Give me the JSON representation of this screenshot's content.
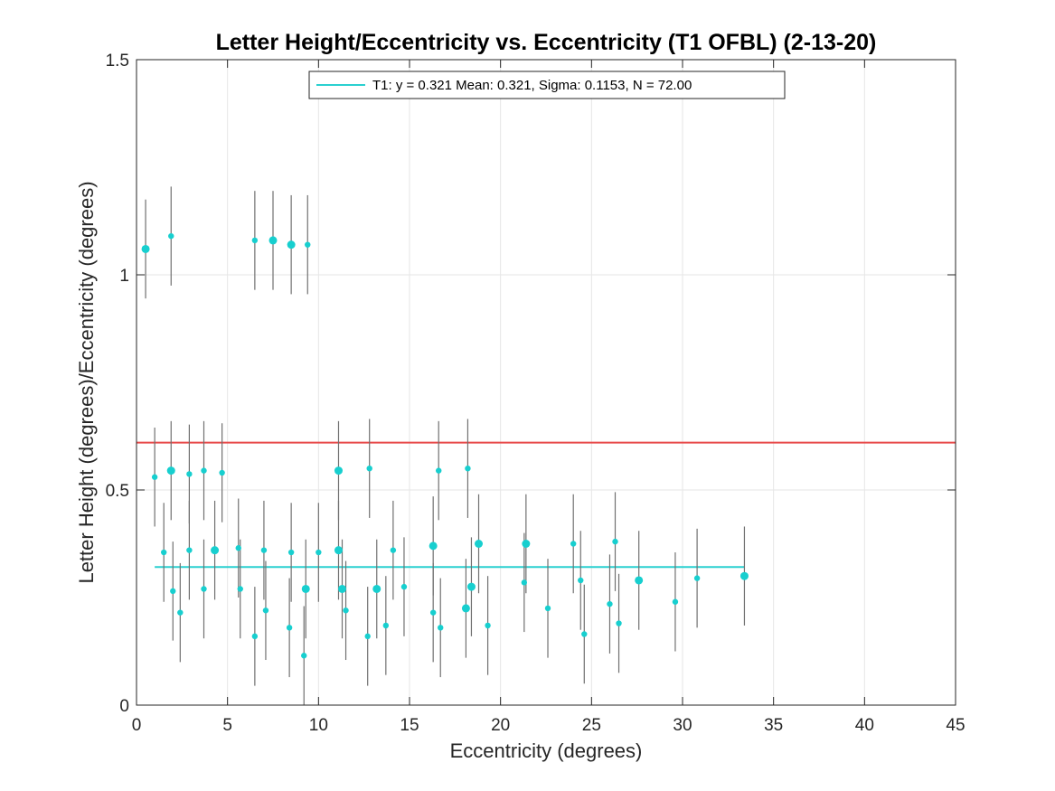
{
  "chart_data": {
    "type": "scatter",
    "title": "Letter Height/Eccentricity vs. Eccentricity (T1 OFBL) (2-13-20)",
    "xlabel": "Eccentricity (degrees)",
    "ylabel": "Letter Height (degrees)/Eccentricity (degrees)",
    "xlim": [
      0,
      45
    ],
    "ylim": [
      0,
      1.5
    ],
    "xticks": [
      0,
      5,
      10,
      15,
      20,
      25,
      30,
      35,
      40,
      45
    ],
    "xtick_labels": [
      "0",
      "5",
      "10",
      "15",
      "20",
      "25",
      "30",
      "35",
      "40",
      "45"
    ],
    "yticks": [
      0,
      0.5,
      1,
      1.5
    ],
    "ytick_labels": [
      "0",
      "0.5",
      "1",
      "1.5"
    ],
    "grid": true,
    "legend": {
      "placement": "top-center",
      "entries": [
        "T1: y = 0.321 Mean: 0.321, Sigma: 0.1153, N = 72.00"
      ]
    },
    "colors": {
      "points": "#17cfcf",
      "fit_line": "#2ad0d0",
      "reference_line": "#e84a4a",
      "error_bars": "#707070",
      "grid": "#e6e6e6"
    },
    "reference_line": {
      "y": 0.61
    },
    "fit_line": {
      "y": 0.321,
      "x_range": [
        1.0,
        33.4
      ]
    },
    "series": [
      {
        "name": "T1",
        "points": [
          {
            "x": 0.5,
            "y": 1.06,
            "err": 0.115,
            "size": "large"
          },
          {
            "x": 1.9,
            "y": 1.09,
            "err": 0.115,
            "size": "small"
          },
          {
            "x": 6.5,
            "y": 1.08,
            "err": 0.115,
            "size": "small"
          },
          {
            "x": 7.5,
            "y": 1.08,
            "err": 0.115,
            "size": "large"
          },
          {
            "x": 8.5,
            "y": 1.07,
            "err": 0.115,
            "size": "large"
          },
          {
            "x": 9.4,
            "y": 1.07,
            "err": 0.115,
            "size": "small"
          },
          {
            "x": 1.0,
            "y": 0.53,
            "err": 0.115,
            "size": "small"
          },
          {
            "x": 1.9,
            "y": 0.545,
            "err": 0.115,
            "size": "large"
          },
          {
            "x": 2.9,
            "y": 0.537,
            "err": 0.115,
            "size": "small"
          },
          {
            "x": 3.7,
            "y": 0.545,
            "err": 0.115,
            "size": "small"
          },
          {
            "x": 4.7,
            "y": 0.54,
            "err": 0.115,
            "size": "small"
          },
          {
            "x": 11.1,
            "y": 0.545,
            "err": 0.115,
            "size": "large"
          },
          {
            "x": 12.8,
            "y": 0.55,
            "err": 0.115,
            "size": "small"
          },
          {
            "x": 16.6,
            "y": 0.545,
            "err": 0.115,
            "size": "small"
          },
          {
            "x": 18.2,
            "y": 0.55,
            "err": 0.115,
            "size": "small"
          },
          {
            "x": 1.5,
            "y": 0.355,
            "err": 0.115,
            "size": "small"
          },
          {
            "x": 2.0,
            "y": 0.265,
            "err": 0.115,
            "size": "small"
          },
          {
            "x": 2.4,
            "y": 0.215,
            "err": 0.115,
            "size": "small"
          },
          {
            "x": 2.9,
            "y": 0.36,
            "err": 0.115,
            "size": "small"
          },
          {
            "x": 3.7,
            "y": 0.27,
            "err": 0.115,
            "size": "small"
          },
          {
            "x": 4.3,
            "y": 0.36,
            "err": 0.115,
            "size": "large"
          },
          {
            "x": 5.6,
            "y": 0.365,
            "err": 0.115,
            "size": "small"
          },
          {
            "x": 5.7,
            "y": 0.27,
            "err": 0.115,
            "size": "small"
          },
          {
            "x": 6.5,
            "y": 0.16,
            "err": 0.115,
            "size": "small"
          },
          {
            "x": 7.0,
            "y": 0.36,
            "err": 0.115,
            "size": "small"
          },
          {
            "x": 7.1,
            "y": 0.22,
            "err": 0.115,
            "size": "small"
          },
          {
            "x": 8.4,
            "y": 0.18,
            "err": 0.115,
            "size": "small"
          },
          {
            "x": 8.5,
            "y": 0.355,
            "err": 0.115,
            "size": "small"
          },
          {
            "x": 9.2,
            "y": 0.115,
            "err": 0.115,
            "size": "small"
          },
          {
            "x": 9.3,
            "y": 0.27,
            "err": 0.115,
            "size": "large"
          },
          {
            "x": 10.0,
            "y": 0.355,
            "err": 0.115,
            "size": "small"
          },
          {
            "x": 11.1,
            "y": 0.36,
            "err": 0.115,
            "size": "large"
          },
          {
            "x": 11.3,
            "y": 0.27,
            "err": 0.115,
            "size": "large"
          },
          {
            "x": 11.5,
            "y": 0.22,
            "err": 0.115,
            "size": "small"
          },
          {
            "x": 12.7,
            "y": 0.16,
            "err": 0.115,
            "size": "small"
          },
          {
            "x": 13.2,
            "y": 0.27,
            "err": 0.115,
            "size": "large"
          },
          {
            "x": 13.7,
            "y": 0.185,
            "err": 0.115,
            "size": "small"
          },
          {
            "x": 14.1,
            "y": 0.36,
            "err": 0.115,
            "size": "small"
          },
          {
            "x": 14.7,
            "y": 0.275,
            "err": 0.115,
            "size": "small"
          },
          {
            "x": 16.3,
            "y": 0.37,
            "err": 0.115,
            "size": "large"
          },
          {
            "x": 16.3,
            "y": 0.215,
            "err": 0.115,
            "size": "small"
          },
          {
            "x": 16.7,
            "y": 0.18,
            "err": 0.115,
            "size": "small"
          },
          {
            "x": 18.1,
            "y": 0.225,
            "err": 0.115,
            "size": "large"
          },
          {
            "x": 18.4,
            "y": 0.275,
            "err": 0.115,
            "size": "large"
          },
          {
            "x": 18.8,
            "y": 0.375,
            "err": 0.115,
            "size": "large"
          },
          {
            "x": 19.3,
            "y": 0.185,
            "err": 0.115,
            "size": "small"
          },
          {
            "x": 21.3,
            "y": 0.285,
            "err": 0.115,
            "size": "small"
          },
          {
            "x": 21.4,
            "y": 0.375,
            "err": 0.115,
            "size": "large"
          },
          {
            "x": 22.6,
            "y": 0.225,
            "err": 0.115,
            "size": "small"
          },
          {
            "x": 24.0,
            "y": 0.375,
            "err": 0.115,
            "size": "small"
          },
          {
            "x": 24.4,
            "y": 0.29,
            "err": 0.115,
            "size": "small"
          },
          {
            "x": 24.6,
            "y": 0.165,
            "err": 0.115,
            "size": "small"
          },
          {
            "x": 26.0,
            "y": 0.235,
            "err": 0.115,
            "size": "small"
          },
          {
            "x": 26.3,
            "y": 0.38,
            "err": 0.115,
            "size": "small"
          },
          {
            "x": 26.5,
            "y": 0.19,
            "err": 0.115,
            "size": "small"
          },
          {
            "x": 27.6,
            "y": 0.29,
            "err": 0.115,
            "size": "large"
          },
          {
            "x": 29.6,
            "y": 0.24,
            "err": 0.115,
            "size": "small"
          },
          {
            "x": 30.8,
            "y": 0.295,
            "err": 0.115,
            "size": "small"
          },
          {
            "x": 33.4,
            "y": 0.3,
            "err": 0.115,
            "size": "large"
          }
        ]
      }
    ]
  }
}
